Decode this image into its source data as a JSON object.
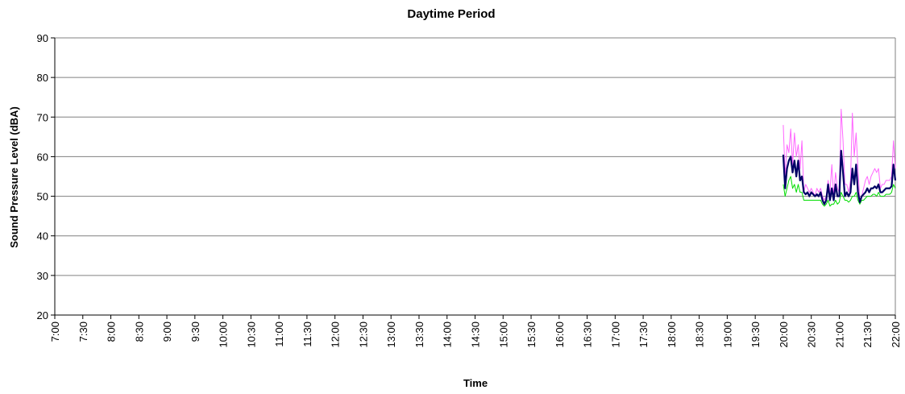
{
  "chart_data": {
    "type": "line",
    "title": "Daytime Period",
    "xlabel": "Time",
    "ylabel": "Sound Pressure Level (dBA)",
    "ylim": [
      20,
      90
    ],
    "yticks": [
      20,
      30,
      40,
      50,
      60,
      70,
      80,
      90
    ],
    "xlim": [
      "7:00",
      "22:00"
    ],
    "xticks": [
      "7:00",
      "7:30",
      "8:00",
      "8:30",
      "9:00",
      "9:30",
      "10:00",
      "10:30",
      "11:00",
      "11:30",
      "12:00",
      "12:30",
      "13:00",
      "13:30",
      "14:00",
      "14:30",
      "15:00",
      "15:30",
      "16:00",
      "16:30",
      "17:00",
      "17:30",
      "18:00",
      "18:30",
      "19:00",
      "19:30",
      "20:00",
      "20:30",
      "21:00",
      "21:30",
      "22:00"
    ],
    "grid": "horizontal",
    "legend": "none",
    "series": [
      {
        "color": "#ff66ff",
        "x": [
          "20:00",
          "20:02",
          "20:04",
          "20:06",
          "20:08",
          "20:10",
          "20:12",
          "20:14",
          "20:16",
          "20:18",
          "20:20",
          "20:22",
          "20:24",
          "20:26",
          "20:28",
          "20:30",
          "20:32",
          "20:34",
          "20:36",
          "20:38",
          "20:40",
          "20:42",
          "20:44",
          "20:46",
          "20:48",
          "20:50",
          "20:52",
          "20:54",
          "20:56",
          "20:58",
          "21:00",
          "21:02",
          "21:04",
          "21:06",
          "21:08",
          "21:10",
          "21:12",
          "21:14",
          "21:16",
          "21:18",
          "21:20",
          "21:22",
          "21:24",
          "21:26",
          "21:28",
          "21:30",
          "21:32",
          "21:34",
          "21:36",
          "21:38",
          "21:40",
          "21:42",
          "21:44",
          "21:46",
          "21:48",
          "21:50",
          "21:52",
          "21:54",
          "21:56",
          "21:58",
          "22:00"
        ],
        "values": [
          68,
          55,
          63,
          61,
          67,
          58,
          66,
          60,
          63,
          57,
          64,
          51,
          53,
          52,
          51,
          52,
          51,
          50,
          52,
          51,
          52,
          50,
          49,
          50,
          54,
          51,
          58,
          50,
          56,
          52,
          51,
          72,
          64,
          53,
          53,
          51,
          54,
          71,
          60,
          66,
          57,
          49,
          50,
          52,
          54,
          55,
          53,
          55,
          56,
          57,
          56,
          57,
          52,
          53,
          53,
          54,
          54,
          54,
          55,
          64,
          57
        ]
      },
      {
        "color": "#000066",
        "x": [
          "20:00",
          "20:02",
          "20:04",
          "20:06",
          "20:08",
          "20:10",
          "20:12",
          "20:14",
          "20:16",
          "20:18",
          "20:20",
          "20:22",
          "20:24",
          "20:26",
          "20:28",
          "20:30",
          "20:32",
          "20:34",
          "20:36",
          "20:38",
          "20:40",
          "20:42",
          "20:44",
          "20:46",
          "20:48",
          "20:50",
          "20:52",
          "20:54",
          "20:56",
          "20:58",
          "21:00",
          "21:02",
          "21:04",
          "21:06",
          "21:08",
          "21:10",
          "21:12",
          "21:14",
          "21:16",
          "21:18",
          "21:20",
          "21:22",
          "21:24",
          "21:26",
          "21:28",
          "21:30",
          "21:32",
          "21:34",
          "21:36",
          "21:38",
          "21:40",
          "21:42",
          "21:44",
          "21:46",
          "21:48",
          "21:50",
          "21:52",
          "21:54",
          "21:56",
          "21:58",
          "22:00"
        ],
        "values": [
          60.5,
          52,
          57,
          59,
          60,
          56,
          59,
          55,
          59,
          54,
          55,
          51,
          50.5,
          51,
          50,
          51,
          50.5,
          50,
          50.5,
          50,
          51,
          49,
          48,
          49,
          53,
          49,
          52,
          49,
          53,
          50,
          50,
          61.5,
          56,
          50,
          51,
          50,
          51,
          57,
          53,
          58,
          51,
          48.5,
          50,
          50.5,
          51,
          52,
          51,
          52,
          52,
          52.5,
          52,
          53,
          51,
          51,
          51.5,
          52,
          52,
          52,
          52.5,
          58,
          54
        ]
      },
      {
        "color": "#00dd00",
        "x": [
          "20:00",
          "20:02",
          "20:04",
          "20:06",
          "20:08",
          "20:10",
          "20:12",
          "20:14",
          "20:16",
          "20:18",
          "20:20",
          "20:22",
          "20:24",
          "20:26",
          "20:28",
          "20:30",
          "20:32",
          "20:34",
          "20:36",
          "20:38",
          "20:40",
          "20:42",
          "20:44",
          "20:46",
          "20:48",
          "20:50",
          "20:52",
          "20:54",
          "20:56",
          "20:58",
          "21:00",
          "21:02",
          "21:04",
          "21:06",
          "21:08",
          "21:10",
          "21:12",
          "21:14",
          "21:16",
          "21:18",
          "21:20",
          "21:22",
          "21:24",
          "21:26",
          "21:28",
          "21:30",
          "21:32",
          "21:34",
          "21:36",
          "21:38",
          "21:40",
          "21:42",
          "21:44",
          "21:46",
          "21:48",
          "21:50",
          "21:52",
          "21:54",
          "21:56",
          "21:58",
          "22:00"
        ],
        "values": [
          53,
          50,
          52,
          54,
          55,
          52,
          53,
          51,
          53,
          51,
          51,
          49,
          49,
          49,
          49,
          49,
          49,
          49,
          49,
          49,
          49,
          48,
          47.5,
          48,
          49,
          47.5,
          48,
          48,
          49,
          48,
          48.5,
          51,
          50,
          49,
          49,
          48.5,
          49,
          50,
          50,
          51,
          49,
          48,
          49,
          49,
          49.5,
          50,
          50,
          50,
          50.5,
          50.5,
          50,
          51,
          50,
          50,
          50,
          50.5,
          50.5,
          50.5,
          51,
          53,
          52
        ]
      }
    ]
  }
}
